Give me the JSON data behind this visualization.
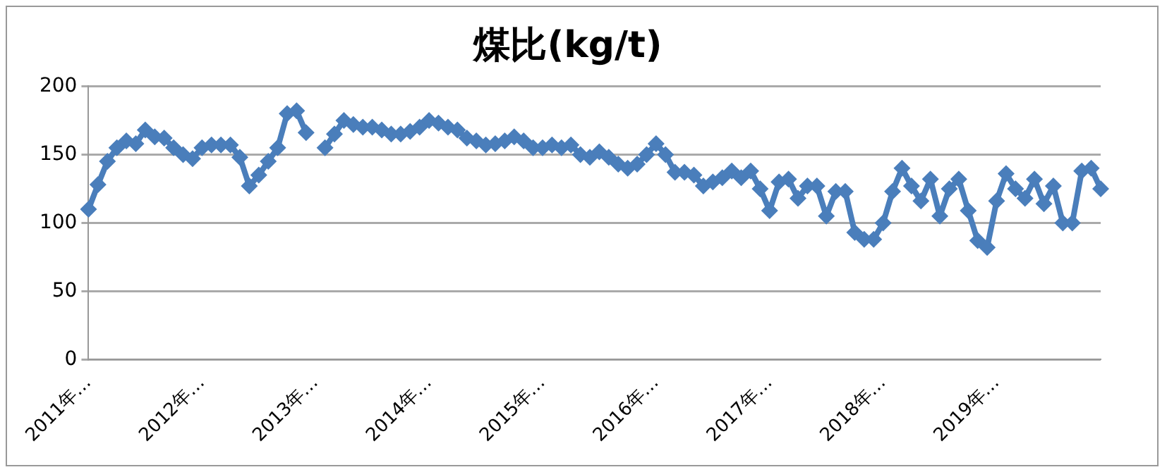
{
  "chart_data": {
    "type": "line",
    "title": "煤比(kg/t)",
    "categories": [
      "2011年…",
      null,
      null,
      null,
      null,
      null,
      null,
      null,
      null,
      null,
      null,
      null,
      "2012年…",
      null,
      null,
      null,
      null,
      null,
      null,
      null,
      null,
      null,
      null,
      null,
      "2013年…",
      null,
      null,
      null,
      null,
      null,
      null,
      null,
      null,
      null,
      null,
      null,
      "2014年…",
      null,
      null,
      null,
      null,
      null,
      null,
      null,
      null,
      null,
      null,
      null,
      "2015年…",
      null,
      null,
      null,
      null,
      null,
      null,
      null,
      null,
      null,
      null,
      null,
      "2016年…",
      null,
      null,
      null,
      null,
      null,
      null,
      null,
      null,
      null,
      null,
      null,
      "2017年…",
      null,
      null,
      null,
      null,
      null,
      null,
      null,
      null,
      null,
      null,
      null,
      "2018年…",
      null,
      null,
      null,
      null,
      null,
      null,
      null,
      null,
      null,
      null,
      null,
      "2019年…",
      null,
      null,
      null,
      null,
      null,
      null,
      null,
      null,
      null,
      null,
      null
    ],
    "series": [
      {
        "color": "#4a7ebb",
        "values": [
          110,
          128,
          145,
          155,
          160,
          158,
          168,
          163,
          162,
          155,
          150,
          147,
          155,
          157,
          157,
          157,
          148,
          127,
          135,
          145,
          155,
          180,
          182,
          166,
          null,
          155,
          165,
          175,
          172,
          170,
          170,
          168,
          165,
          165,
          167,
          170,
          175,
          173,
          170,
          168,
          162,
          160,
          157,
          158,
          160,
          163,
          160,
          155,
          155,
          157,
          155,
          157,
          150,
          148,
          152,
          148,
          143,
          140,
          143,
          150,
          158,
          150,
          137,
          137,
          135,
          127,
          130,
          133,
          138,
          133,
          138,
          125,
          109,
          130,
          132,
          118,
          127,
          127,
          105,
          123,
          123,
          93,
          88,
          88,
          100,
          123,
          140,
          127,
          116,
          132,
          105,
          125,
          132,
          109,
          87,
          82,
          116,
          136,
          125,
          118,
          132,
          114,
          127,
          100,
          100,
          138,
          140,
          125
        ]
      }
    ],
    "ylim": [
      0,
      200
    ],
    "yticks": [
      0,
      50,
      100,
      150,
      200
    ],
    "grid": "y",
    "legend": false,
    "marker": "diamond",
    "line_style": "solid"
  }
}
